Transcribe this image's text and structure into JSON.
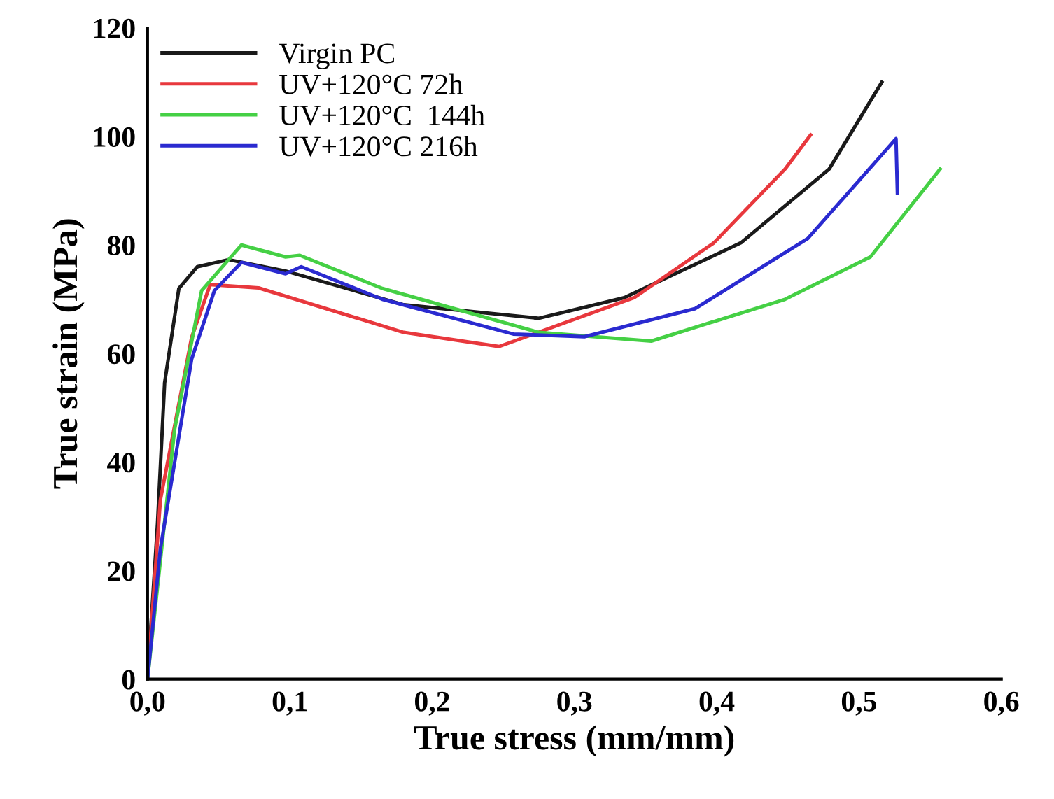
{
  "chart_data": {
    "type": "line",
    "xlabel": "True stress (mm/mm)",
    "ylabel": "True strain (MPa)",
    "xlim": [
      0,
      0.6
    ],
    "ylim": [
      0,
      120
    ],
    "xticks": [
      {
        "value": 0,
        "label": "0,0"
      },
      {
        "value": 0.1,
        "label": "0,1"
      },
      {
        "value": 0.2,
        "label": "0,2"
      },
      {
        "value": 0.3,
        "label": "0,3"
      },
      {
        "value": 0.4,
        "label": "0,4"
      },
      {
        "value": 0.5,
        "label": "0,5"
      },
      {
        "value": 0.6,
        "label": "0,6"
      }
    ],
    "yticks": [
      0,
      20,
      40,
      60,
      80,
      100,
      120
    ],
    "grid": false,
    "legend": "top left",
    "line_style": "solid",
    "series": [
      {
        "name": "Virgin PC",
        "color": "#1a1a1a",
        "x": [
          0,
          0.007,
          0.012,
          0.022,
          0.035,
          0.057,
          0.097,
          0.18,
          0.275,
          0.335,
          0.417,
          0.479,
          0.516
        ],
        "values": [
          0,
          28.7,
          54.6,
          72,
          76,
          77.3,
          75.2,
          69,
          66.5,
          70.3,
          80.4,
          94,
          110
        ]
      },
      {
        "name": "UV+120°C 72h",
        "color": "#e8383d",
        "x": [
          0,
          0.009,
          0.031,
          0.044,
          0.078,
          0.18,
          0.247,
          0.342,
          0.398,
          0.448,
          0.466
        ],
        "values": [
          0,
          33,
          63,
          72.7,
          72.1,
          63.9,
          61.3,
          70.3,
          80.4,
          94,
          100.3
        ]
      },
      {
        "name": "UV+120°C  144h",
        "color": "#45d045",
        "x": [
          0,
          0.019,
          0.038,
          0.066,
          0.097,
          0.107,
          0.165,
          0.275,
          0.354,
          0.448,
          0.508,
          0.557
        ],
        "values": [
          0,
          46,
          71.6,
          80,
          77.8,
          78.1,
          72,
          63.9,
          62.3,
          70,
          77.8,
          94
        ]
      },
      {
        "name": "UV+120°C 216h",
        "color": "#2a2ad0",
        "x": [
          0,
          0.009,
          0.031,
          0.047,
          0.066,
          0.097,
          0.108,
          0.165,
          0.257,
          0.307,
          0.385,
          0.464,
          0.526,
          0.527
        ],
        "values": [
          0,
          24,
          59,
          71.6,
          76.8,
          74.7,
          76,
          70,
          63.6,
          63.1,
          68.3,
          81.2,
          99.6,
          89.5
        ]
      }
    ]
  }
}
